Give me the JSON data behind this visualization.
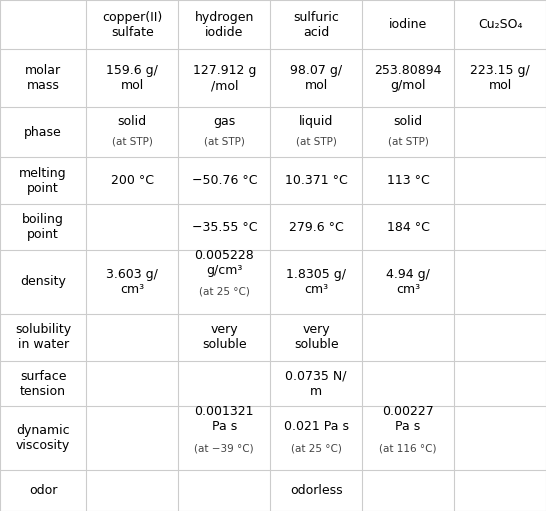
{
  "columns": [
    "",
    "copper(II)\nsulfate",
    "hydrogen\niodide",
    "sulfuric\nacid",
    "iodine",
    "Cu₂SO₄"
  ],
  "rows": [
    {
      "label": "molar\nmass",
      "values": [
        "159.6 g/\nmol",
        "127.912 g\n/mol",
        "98.07 g/\nmol",
        "253.80894\ng/mol",
        "223.15 g/\nmol"
      ]
    },
    {
      "label": "phase",
      "values": [
        "solid\n(at STP)",
        "gas\n(at STP)",
        "liquid\n(at STP)",
        "solid\n(at STP)",
        ""
      ]
    },
    {
      "label": "melting\npoint",
      "values": [
        "200 °C",
        "−50.76 °C",
        "10.371 °C",
        "113 °C",
        ""
      ]
    },
    {
      "label": "boiling\npoint",
      "values": [
        "",
        "−35.55 °C",
        "279.6 °C",
        "184 °C",
        ""
      ]
    },
    {
      "label": "density",
      "values": [
        "3.603 g/\ncm³",
        "0.005228\ng/cm³\n(at 25 °C)",
        "1.8305 g/\ncm³",
        "4.94 g/\ncm³",
        ""
      ]
    },
    {
      "label": "solubility\nin water",
      "values": [
        "",
        "very\nsoluble",
        "very\nsoluble",
        "",
        ""
      ]
    },
    {
      "label": "surface\ntension",
      "values": [
        "",
        "",
        "0.0735 N/\nm",
        "",
        ""
      ]
    },
    {
      "label": "dynamic\nviscosity",
      "values": [
        "",
        "0.001321\nPa s\n(at −39 °C)",
        "0.021 Pa s\n(at 25 °C)",
        "0.00227\nPa s\n(at 116 °C)",
        ""
      ]
    },
    {
      "label": "odor",
      "values": [
        "",
        "",
        "odorless",
        "",
        ""
      ]
    }
  ],
  "bg_color": "#ffffff",
  "line_color": "#cccccc",
  "text_color": "#000000",
  "header_fontsize": 9,
  "cell_fontsize": 9,
  "label_fontsize": 9
}
